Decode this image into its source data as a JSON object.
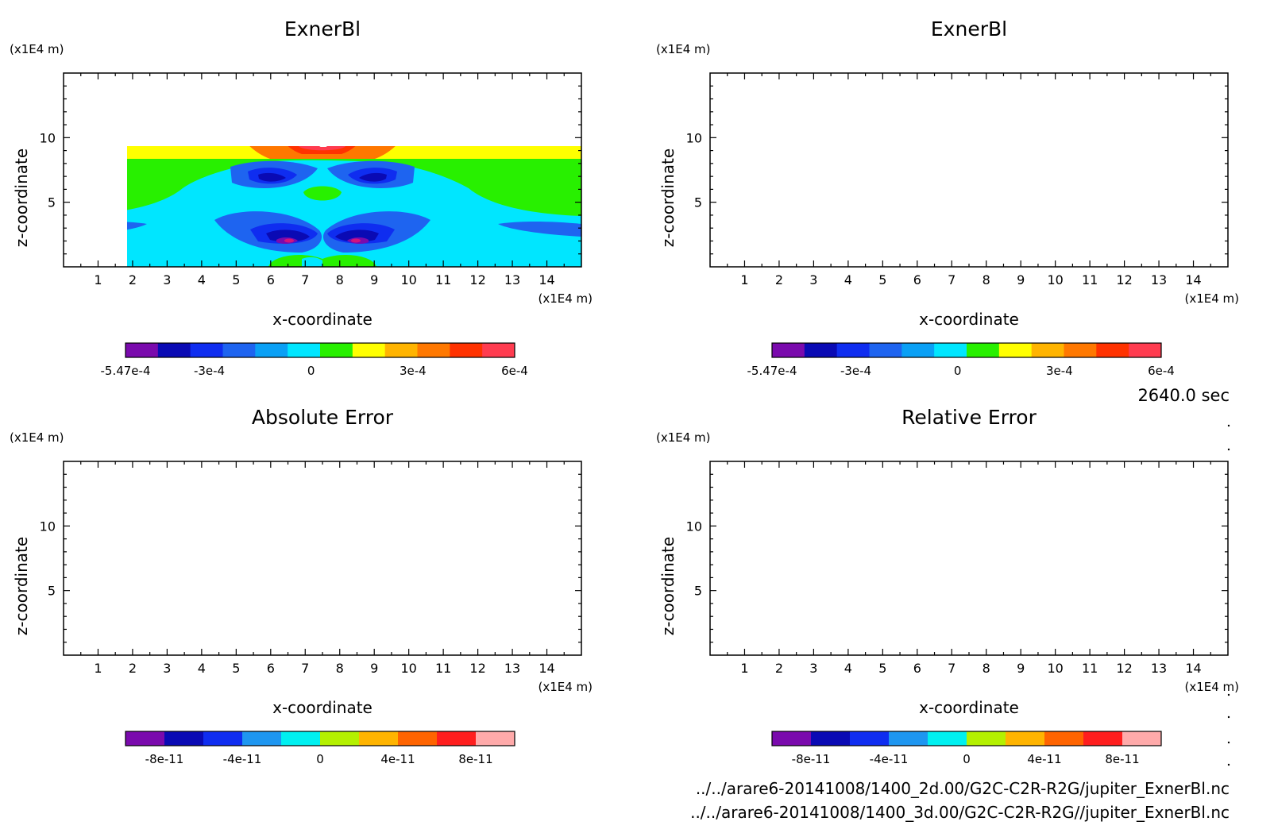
{
  "chart_data": [
    {
      "type": "heatmap",
      "title": "ExnerBl",
      "xlabel": "x-coordinate",
      "ylabel": "z-coordinate",
      "x_unit": "(x1E4 m)",
      "y_unit": "(x1E4 m)",
      "xlim": [
        0,
        15
      ],
      "ylim": [
        0,
        15
      ],
      "x_ticks": [
        1,
        2,
        3,
        4,
        5,
        6,
        7,
        8,
        9,
        10,
        11,
        12,
        13,
        14
      ],
      "y_ticks": [
        5,
        10
      ],
      "colorbar": {
        "levels": [
          "-5.47e-4",
          "-3e-4",
          "0",
          "3e-4",
          "6e-4"
        ],
        "range": [
          -0.000547,
          0.0006
        ],
        "colors": [
          "#7a0aad",
          "#0a0ab4",
          "#0f2df0",
          "#1e64f0",
          "#0aa0f5",
          "#00e6ff",
          "#28f000",
          "#ffff00",
          "#ffb400",
          "#ff7800",
          "#ff3200",
          "#ff3c50"
        ]
      },
      "field": "filled"
    },
    {
      "type": "heatmap",
      "title": "ExnerBl",
      "xlabel": "x-coordinate",
      "ylabel": "z-coordinate",
      "x_unit": "(x1E4 m)",
      "y_unit": "(x1E4 m)",
      "xlim": [
        0,
        15
      ],
      "ylim": [
        0,
        15
      ],
      "x_ticks": [
        1,
        2,
        3,
        4,
        5,
        6,
        7,
        8,
        9,
        10,
        11,
        12,
        13,
        14
      ],
      "y_ticks": [
        5,
        10
      ],
      "colorbar": {
        "levels": [
          "-5.47e-4",
          "-3e-4",
          "0",
          "3e-4",
          "6e-4"
        ],
        "range": [
          -0.000547,
          0.0006
        ],
        "colors": [
          "#7a0aad",
          "#0a0ab4",
          "#0f2df0",
          "#1e64f0",
          "#0aa0f5",
          "#00e6ff",
          "#28f000",
          "#ffff00",
          "#ffb400",
          "#ff7800",
          "#ff3200",
          "#ff3c50"
        ]
      },
      "field": "filled"
    },
    {
      "type": "heatmap",
      "title": "Absolute Error",
      "xlabel": "x-coordinate",
      "ylabel": "z-coordinate",
      "x_unit": "(x1E4 m)",
      "y_unit": "(x1E4 m)",
      "xlim": [
        0,
        15
      ],
      "ylim": [
        0,
        15
      ],
      "x_ticks": [
        1,
        2,
        3,
        4,
        5,
        6,
        7,
        8,
        9,
        10,
        11,
        12,
        13,
        14
      ],
      "y_ticks": [
        5,
        10
      ],
      "colorbar": {
        "levels": [
          "-8e-11",
          "-4e-11",
          "0",
          "4e-11",
          "8e-11"
        ],
        "range": [
          -1e-10,
          1e-10
        ],
        "colors": [
          "#7a0aad",
          "#0a0ab4",
          "#0f2df0",
          "#1e96f0",
          "#00f0f0",
          "#b4f000",
          "#ffb400",
          "#ff6400",
          "#ff1e1e",
          "#ffaaaa"
        ]
      },
      "field": "empty"
    },
    {
      "type": "heatmap",
      "title": "Relative Error",
      "xlabel": "x-coordinate",
      "ylabel": "z-coordinate",
      "x_unit": "(x1E4 m)",
      "y_unit": "(x1E4 m)",
      "xlim": [
        0,
        15
      ],
      "ylim": [
        0,
        15
      ],
      "x_ticks": [
        1,
        2,
        3,
        4,
        5,
        6,
        7,
        8,
        9,
        10,
        11,
        12,
        13,
        14
      ],
      "y_ticks": [
        5,
        10
      ],
      "colorbar": {
        "levels": [
          "-8e-11",
          "-4e-11",
          "0",
          "4e-11",
          "8e-11"
        ],
        "range": [
          -1e-10,
          1e-10
        ],
        "colors": [
          "#7a0aad",
          "#0a0ab4",
          "#0f2df0",
          "#1e96f0",
          "#00f0f0",
          "#b4f000",
          "#ffb400",
          "#ff6400",
          "#ff1e1e",
          "#ffaaaa"
        ]
      },
      "field": "empty"
    }
  ],
  "time_label": "2640.0 sec",
  "footer": {
    "line1": "../../arare6-20141008/1400_2d.00/G2C-C2R-R2G/jupiter_ExnerBl.nc",
    "line2": "../../arare6-20141008/1400_3d.00/G2C-C2R-R2G//jupiter_ExnerBl.nc"
  }
}
